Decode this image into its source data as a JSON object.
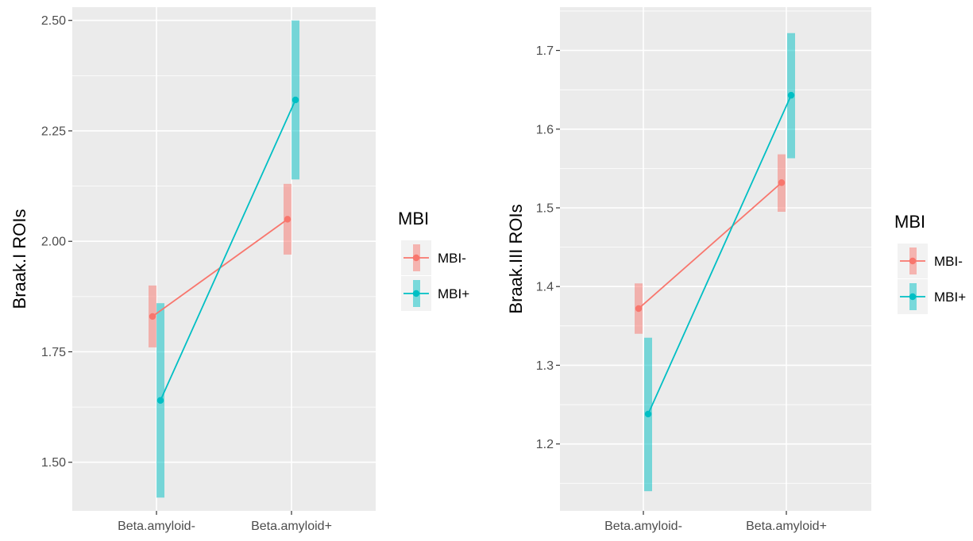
{
  "legend": {
    "title": "MBI",
    "items": [
      {
        "label": "MBI-",
        "color": "#F8766D"
      },
      {
        "label": "MBI+",
        "color": "#00BFC4"
      }
    ]
  },
  "chart_data": [
    {
      "type": "line",
      "xlabel": "",
      "ylabel": "Braak.I ROIs",
      "categories": [
        "Beta.amyloid-",
        "Beta.amyloid+"
      ],
      "ylim": [
        1.39,
        2.53
      ],
      "yticks": [
        "1.50",
        "1.75",
        "2.00",
        "2.25",
        "2.50"
      ],
      "grid": true,
      "legend_position": "right",
      "series": [
        {
          "name": "MBI-",
          "color": "#F8766D",
          "values": [
            1.83,
            2.05
          ],
          "lower": [
            1.76,
            1.97
          ],
          "upper": [
            1.9,
            2.13
          ]
        },
        {
          "name": "MBI+",
          "color": "#00BFC4",
          "values": [
            1.64,
            2.32
          ],
          "lower": [
            1.42,
            2.14
          ],
          "upper": [
            1.86,
            2.5
          ]
        }
      ]
    },
    {
      "type": "line",
      "xlabel": "",
      "ylabel": "Braak.III ROIs",
      "categories": [
        "Beta.amyloid-",
        "Beta.amyloid+"
      ],
      "ylim": [
        1.115,
        1.755
      ],
      "yticks": [
        "1.2",
        "1.3",
        "1.4",
        "1.5",
        "1.6",
        "1.7"
      ],
      "grid": true,
      "legend_position": "right",
      "series": [
        {
          "name": "MBI-",
          "color": "#F8766D",
          "values": [
            1.372,
            1.532
          ],
          "lower": [
            1.34,
            1.495
          ],
          "upper": [
            1.404,
            1.568
          ]
        },
        {
          "name": "MBI+",
          "color": "#00BFC4",
          "values": [
            1.238,
            1.643
          ],
          "lower": [
            1.14,
            1.563
          ],
          "upper": [
            1.335,
            1.722
          ]
        }
      ]
    }
  ]
}
